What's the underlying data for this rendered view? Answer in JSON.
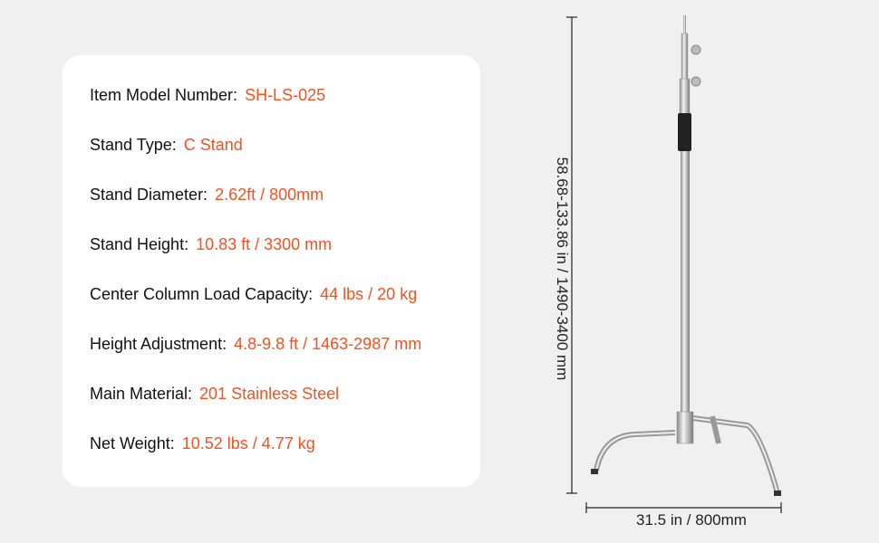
{
  "specs": [
    {
      "label": "Item Model Number:",
      "value": "SH-LS-025"
    },
    {
      "label": "Stand Type:",
      "value": "C Stand"
    },
    {
      "label": "Stand Diameter:",
      "value": "2.62ft / 800mm"
    },
    {
      "label": "Stand Height:",
      "value": "10.83 ft / 3300 mm"
    },
    {
      "label": "Center Column Load Capacity:",
      "value": "44 lbs / 20 kg"
    },
    {
      "label": "Height Adjustment:",
      "value": "4.8-9.8 ft / 1463-2987 mm"
    },
    {
      "label": "Main Material:",
      "value": "201 Stainless Steel"
    },
    {
      "label": "Net Weight:",
      "value": "10.52 lbs / 4.77 kg"
    }
  ],
  "dimensions": {
    "height": "58.68-133.86 in / 1490-3400 mm",
    "width": "31.5 in / 800mm"
  },
  "colors": {
    "accent": "#f4511e",
    "background": "#f0f0f0",
    "card": "#ffffff"
  }
}
